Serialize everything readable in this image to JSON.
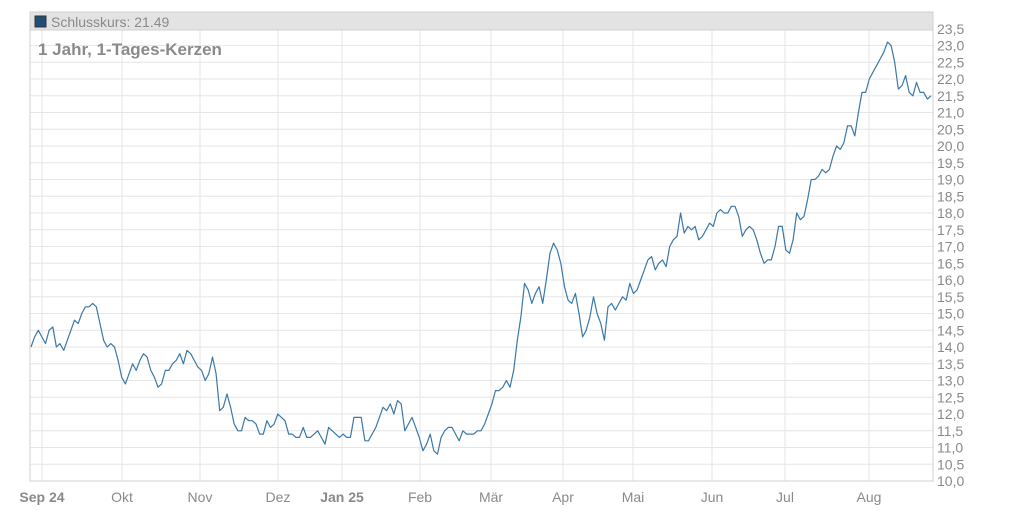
{
  "legend": {
    "label": "Schlusskurs: 21.49",
    "swatch_color": "#1f4e79"
  },
  "subtitle": "1 Jahr, 1-Tages-Kerzen",
  "chart_data": {
    "type": "line",
    "title": "",
    "xlabel": "",
    "ylabel": "",
    "ylim": [
      10.0,
      24.0
    ],
    "grid": true,
    "legend_position": "top-left",
    "line_color": "#3a78a8",
    "y_ticks": [
      "10,0",
      "10,5",
      "11,0",
      "11,5",
      "12,0",
      "12,5",
      "13,0",
      "13,5",
      "14,0",
      "14,5",
      "15,0",
      "15,5",
      "16,0",
      "16,5",
      "17,0",
      "17,5",
      "18,0",
      "18,5",
      "19,0",
      "19,5",
      "20,0",
      "20,5",
      "21,0",
      "21,5",
      "22,0",
      "22,5",
      "23,0",
      "23,5"
    ],
    "x_ticks": [
      {
        "label": "Sep 24",
        "bold": true
      },
      {
        "label": "Okt",
        "bold": false
      },
      {
        "label": "Nov",
        "bold": false
      },
      {
        "label": "Dez",
        "bold": false
      },
      {
        "label": "Jan 25",
        "bold": true
      },
      {
        "label": "Feb",
        "bold": false
      },
      {
        "label": "Mär",
        "bold": false
      },
      {
        "label": "Apr",
        "bold": false
      },
      {
        "label": "Mai",
        "bold": false
      },
      {
        "label": "Jun",
        "bold": false
      },
      {
        "label": "Jul",
        "bold": false
      },
      {
        "label": "Aug",
        "bold": false
      }
    ],
    "series": [
      {
        "values": [
          14.0,
          14.3,
          14.5,
          14.3,
          14.1,
          14.5,
          14.6,
          14.0,
          14.1,
          13.9,
          14.2,
          14.5,
          14.8,
          14.7,
          15.0,
          15.2,
          15.2,
          15.3,
          15.2,
          14.7,
          14.2,
          14.0,
          14.1,
          14.0,
          13.6,
          13.1,
          12.9,
          13.2,
          13.5,
          13.3,
          13.6,
          13.8,
          13.7,
          13.3,
          13.1,
          12.8,
          12.9,
          13.3,
          13.3,
          13.5,
          13.6,
          13.8,
          13.5,
          13.9,
          13.8,
          13.6,
          13.4,
          13.3,
          13.0,
          13.2,
          13.7,
          13.2,
          12.1,
          12.2,
          12.6,
          12.2,
          11.7,
          11.5,
          11.5,
          11.9,
          11.8,
          11.8,
          11.7,
          11.4,
          11.4,
          11.8,
          11.6,
          11.7,
          12.0,
          11.9,
          11.8,
          11.4,
          11.4,
          11.3,
          11.3,
          11.6,
          11.3,
          11.3,
          11.4,
          11.5,
          11.3,
          11.1,
          11.6,
          11.5,
          11.4,
          11.3,
          11.4,
          11.3,
          11.3,
          11.9,
          11.9,
          11.9,
          11.2,
          11.2,
          11.4,
          11.6,
          11.9,
          12.2,
          12.1,
          12.3,
          12.0,
          12.4,
          12.3,
          11.5,
          11.7,
          11.9,
          11.6,
          11.3,
          10.9,
          11.1,
          11.4,
          10.9,
          10.8,
          11.3,
          11.5,
          11.6,
          11.6,
          11.4,
          11.2,
          11.5,
          11.4,
          11.4,
          11.4,
          11.5,
          11.5,
          11.7,
          12.0,
          12.3,
          12.7,
          12.7,
          12.8,
          13.0,
          12.8,
          13.3,
          14.2,
          14.9,
          15.9,
          15.7,
          15.3,
          15.6,
          15.8,
          15.3,
          16.0,
          16.8,
          17.1,
          16.9,
          16.5,
          15.8,
          15.4,
          15.3,
          15.6,
          15.0,
          14.3,
          14.5,
          14.9,
          15.5,
          15.0,
          14.7,
          14.2,
          15.2,
          15.3,
          15.1,
          15.3,
          15.5,
          15.4,
          15.9,
          15.6,
          15.7,
          16.0,
          16.3,
          16.6,
          16.7,
          16.3,
          16.5,
          16.6,
          16.4,
          17.0,
          17.2,
          17.3,
          18.0,
          17.4,
          17.6,
          17.5,
          17.6,
          17.2,
          17.3,
          17.5,
          17.7,
          17.6,
          18.0,
          18.1,
          18.0,
          18.0,
          18.2,
          18.2,
          17.9,
          17.3,
          17.5,
          17.6,
          17.5,
          17.2,
          16.8,
          16.5,
          16.6,
          16.6,
          17.0,
          17.6,
          17.6,
          16.9,
          16.8,
          17.2,
          18.0,
          17.8,
          17.9,
          18.4,
          19.0,
          19.0,
          19.1,
          19.3,
          19.2,
          19.3,
          19.7,
          20.0,
          19.9,
          20.1,
          20.6,
          20.6,
          20.3,
          21.0,
          21.6,
          21.6,
          22.0,
          22.2,
          22.4,
          22.6,
          22.8,
          23.1,
          23.0,
          22.5,
          21.7,
          21.8,
          22.1,
          21.6,
          21.5,
          21.9,
          21.6,
          21.6,
          21.4,
          21.5
        ]
      }
    ]
  }
}
